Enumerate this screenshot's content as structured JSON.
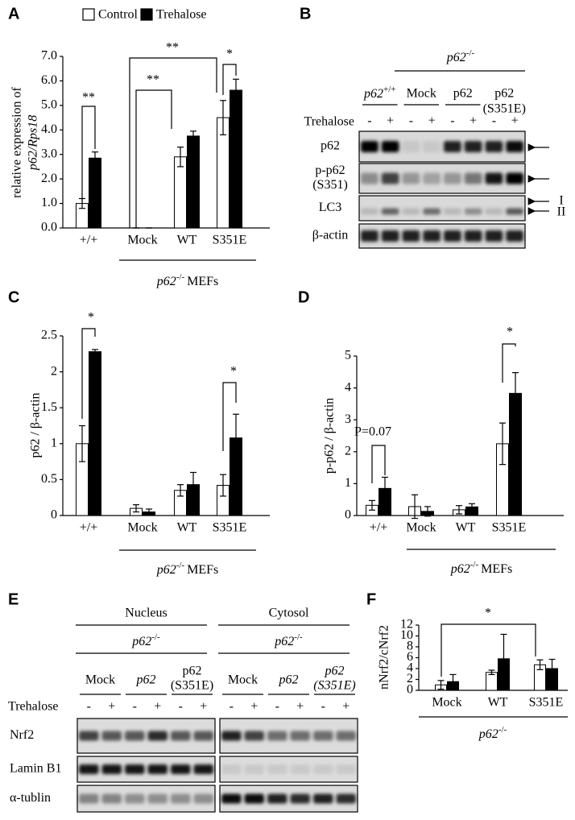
{
  "chart_data": [
    {
      "panel": "A",
      "type": "bar",
      "ylabel": [
        "relative expression of",
        "p62/Rps18"
      ],
      "legend": "top",
      "categories": [
        "+/+",
        "Mock",
        "WT",
        "S351E"
      ],
      "series": [
        {
          "name": "Control",
          "color": "#ffffff",
          "values": [
            1.0,
            0,
            2.9,
            4.5
          ],
          "errors": [
            0.2,
            0,
            0.4,
            0.7
          ]
        },
        {
          "name": "Trehalose",
          "color": "#000000",
          "values": [
            2.85,
            0,
            3.75,
            5.62
          ],
          "errors": [
            0.25,
            0,
            0.2,
            0.45
          ]
        }
      ],
      "ylim": [
        0,
        7
      ],
      "yticks": [
        {
          "value": 0,
          "label": "0.0"
        },
        {
          "value": 1,
          "label": "1.0"
        },
        {
          "value": 2,
          "label": "2.0"
        },
        {
          "value": 3,
          "label": "3.0"
        },
        {
          "value": 4,
          "label": "4.0"
        },
        {
          "value": 5,
          "label": "5.0"
        },
        {
          "value": 6,
          "label": "6.0"
        },
        {
          "value": 7,
          "label": "7.0"
        }
      ],
      "annotations": [
        "**",
        "**",
        "**",
        "*"
      ],
      "group_label": [
        "p62",
        "-/-",
        "MEFs"
      ]
    },
    {
      "panel": "C",
      "type": "bar",
      "ylabel": [
        "p62 / β-actin"
      ],
      "categories": [
        "+/+",
        "Mock",
        "WT",
        "S351E"
      ],
      "series": [
        {
          "name": "Control",
          "color": "#ffffff",
          "values": [
            1.0,
            0.1,
            0.35,
            0.42
          ],
          "errors": [
            0.25,
            0.05,
            0.08,
            0.15
          ]
        },
        {
          "name": "Trehalose",
          "color": "#000000",
          "values": [
            2.28,
            0.05,
            0.43,
            1.08
          ],
          "errors": [
            0.03,
            0.04,
            0.17,
            0.33
          ]
        }
      ],
      "ylim": [
        0,
        2.5
      ],
      "yticks": [
        0,
        0.5,
        1,
        1.5,
        2,
        2.5
      ],
      "annotations": [
        "*",
        "*"
      ],
      "group_label": [
        "p62",
        "-/-",
        "MEFs"
      ]
    },
    {
      "panel": "D",
      "type": "bar",
      "ylabel": [
        "p-p62 / β-actin"
      ],
      "categories": [
        "+/+",
        "Mock",
        "WT",
        "S351E"
      ],
      "series": [
        {
          "name": "Control",
          "color": "#ffffff",
          "values": [
            0.32,
            0.28,
            0.18,
            2.25
          ],
          "errors": [
            0.15,
            0.37,
            0.13,
            0.65
          ]
        },
        {
          "name": "Trehalose",
          "color": "#000000",
          "values": [
            0.85,
            0.13,
            0.27,
            3.83
          ],
          "errors": [
            0.35,
            0.15,
            0.1,
            0.65
          ]
        }
      ],
      "ylim": [
        0,
        5
      ],
      "yticks": [
        0,
        1,
        2,
        3,
        4,
        5
      ],
      "annotations": [
        "P=0.07",
        "*"
      ],
      "group_label": [
        "p62",
        "-/-",
        "MEFs"
      ]
    },
    {
      "panel": "F",
      "type": "bar",
      "ylabel": [
        "nNrf2/cNrf2"
      ],
      "categories": [
        "Mock",
        "WT",
        "S351E"
      ],
      "series": [
        {
          "name": "Control",
          "color": "#ffffff",
          "values": [
            1.0,
            3.3,
            4.7
          ],
          "errors": [
            0.8,
            0.4,
            0.9
          ]
        },
        {
          "name": "Trehalose",
          "color": "#000000",
          "values": [
            1.6,
            5.8,
            4.0
          ],
          "errors": [
            1.3,
            4.5,
            1.7
          ]
        }
      ],
      "ylim": [
        0,
        12
      ],
      "yticks": [
        0,
        2,
        4,
        6,
        8,
        10,
        12
      ],
      "annotations": [
        "*"
      ],
      "group_label": [
        "p62",
        "-/-"
      ]
    }
  ],
  "blots": [
    {
      "panel": "B",
      "header": [
        "p62",
        "-/-"
      ],
      "groups": [
        [
          "p62",
          "+/+"
        ],
        [
          "Mock"
        ],
        [
          "p62"
        ],
        [
          "p62",
          "(S351E)"
        ]
      ],
      "treatment_label": "Trehalose",
      "treatment": [
        "-",
        "+",
        "-",
        "+",
        "-",
        "+",
        "-",
        "+"
      ],
      "rows": [
        [
          "p62"
        ],
        [
          "p-p62",
          "(S351)"
        ],
        [
          "LC3"
        ],
        [
          "β-actin"
        ]
      ],
      "arrow_labels": [
        "I",
        "II"
      ]
    },
    {
      "panel": "E",
      "sections": [
        {
          "title": "Nucleus",
          "header": [
            "p62",
            "-/-"
          ],
          "groups": [
            [
              "Mock"
            ],
            [
              "p62"
            ],
            [
              "p62",
              "(S351E)"
            ]
          ],
          "treatment": [
            "-",
            "+",
            "-",
            "+",
            "-",
            "+"
          ]
        },
        {
          "title": "Cytosol",
          "header": [
            "p62",
            "-/-"
          ],
          "groups": [
            [
              "Mock"
            ],
            [
              "p62"
            ],
            [
              "p62",
              "(S351E)"
            ]
          ],
          "treatment": [
            "-",
            "+",
            "-",
            "+",
            "-",
            "+"
          ]
        }
      ],
      "treatment_label": "Trehalose",
      "rows": [
        [
          "Nrf2"
        ],
        [
          "Lamin B1"
        ],
        [
          "α-tublin"
        ]
      ]
    }
  ]
}
